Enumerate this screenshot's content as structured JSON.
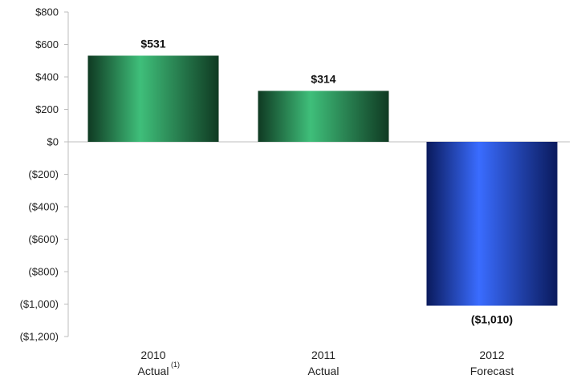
{
  "chart_data": {
    "type": "bar",
    "categories": [
      {
        "line1": "2010",
        "line2": "Actual",
        "footnote": "(1)"
      },
      {
        "line1": "2011",
        "line2": "Actual",
        "footnote": ""
      },
      {
        "line1": "2012",
        "line2": "Forecast",
        "footnote": ""
      }
    ],
    "values": [
      531,
      314,
      -1010
    ],
    "data_labels": [
      "$531",
      "$314",
      "($1,010)"
    ],
    "bar_styles": [
      "green",
      "green",
      "blue"
    ],
    "ylim": [
      -1200,
      800
    ],
    "yticks": [
      800,
      600,
      400,
      200,
      0,
      -200,
      -400,
      -600,
      -800,
      -1000,
      -1200
    ],
    "ytick_labels": [
      "$800",
      "$600",
      "$400",
      "$200",
      "$0",
      "($200)",
      "($400)",
      "($600)",
      "($800)",
      "($1,000)",
      "($1,200)"
    ],
    "grid": false,
    "legend": "none",
    "colors": {
      "green_dark": "#0f3a22",
      "green_light": "#3fbf7a",
      "blue_dark": "#0a1a5c",
      "blue_light": "#3a6cff",
      "axis": "#bdbdbd"
    }
  }
}
